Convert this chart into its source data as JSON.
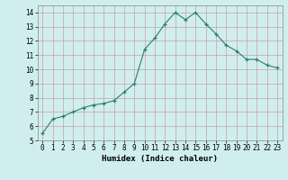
{
  "x": [
    0,
    1,
    2,
    3,
    4,
    5,
    6,
    7,
    8,
    9,
    10,
    11,
    12,
    13,
    14,
    15,
    16,
    17,
    18,
    19,
    20,
    21,
    22,
    23
  ],
  "y": [
    5.5,
    6.5,
    6.7,
    7.0,
    7.3,
    7.5,
    7.6,
    7.8,
    8.4,
    9.0,
    11.4,
    12.2,
    13.2,
    14.0,
    13.5,
    14.0,
    13.2,
    12.5,
    11.7,
    11.3,
    10.7,
    10.7,
    10.3,
    10.1
  ],
  "xlabel": "Humidex (Indice chaleur)",
  "ylim": [
    5,
    14.5
  ],
  "xlim": [
    -0.5,
    23.5
  ],
  "yticks": [
    5,
    6,
    7,
    8,
    9,
    10,
    11,
    12,
    13,
    14
  ],
  "xticks": [
    0,
    1,
    2,
    3,
    4,
    5,
    6,
    7,
    8,
    9,
    10,
    11,
    12,
    13,
    14,
    15,
    16,
    17,
    18,
    19,
    20,
    21,
    22,
    23
  ],
  "line_color": "#2a7d6e",
  "marker": "+",
  "bg_color": "#d0eeee",
  "grid_color": "#c8a0a0",
  "spine_color": "#888888"
}
